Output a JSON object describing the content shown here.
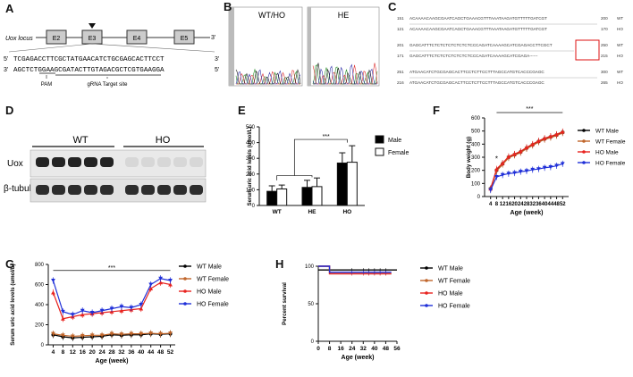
{
  "panels": {
    "A": {
      "label": "A",
      "locus_label": "Uox locus",
      "exons": [
        "E2",
        "E3",
        "E4",
        "E5"
      ],
      "prime5": "5'",
      "prime3": "3'",
      "top_seq": "TCGAGACCTTCGCTATGAACATCTGCGAGCACTTCCT",
      "bottom_seq": "AGCTCTGGAAGCGATACTTGTAGACGCTCGTGAAGGA",
      "top_left": "5'",
      "top_right": "3'",
      "bot_left": "3'",
      "bot_right": "5'",
      "pam_label": "PAM",
      "grna_label": "gRNA Target site"
    },
    "B": {
      "label": "B",
      "left_title": "WT/HO",
      "right_title": "HE"
    },
    "C": {
      "label": "C",
      "rows": [
        {
          "start": "151",
          "seq": "ACAAAACAAGCGAATCAGCTGAAACGTTTAAATAAGATGTTTTTGATCGT",
          "end": "200",
          "name": "WT"
        },
        {
          "start": "121",
          "seq": "ACAAAACAAGCGAATCAGCTGAAACGTTTAAATAAGATGTTTTTGATCGT",
          "end": "170",
          "name": "HO"
        },
        {
          "start": "201",
          "seq": "GAGCATTTCTCTCTCTCTCTCTCCCAGATCAAAAGCATCGAGACCTTCGCT",
          "end": "250",
          "name": "WT"
        },
        {
          "start": "171",
          "seq": "GAGCATTTCTCTCTCTCTCTCTCCCAGATCAAAAGCATCGAGA------",
          "end": "215",
          "name": "HO"
        },
        {
          "start": "251",
          "seq": "ATGAACATCTGCGAGCACTTCCTCTTCCTTTAGCCATGTCACCCGAGC",
          "end": "300",
          "name": "WT"
        },
        {
          "start": "216",
          "seq": "ATGAACATCTGCGAGCACTTCCTCTTCCTTTAGCCATGTCACCCGAGC",
          "end": "265",
          "name": "HO"
        }
      ]
    },
    "D": {
      "label": "D",
      "group_wt": "WT",
      "group_ho": "HO",
      "row1": "Uox",
      "row2": "β-tubulin"
    },
    "E": {
      "label": "E",
      "significance": "***"
    },
    "F": {
      "label": "F",
      "significance": "***",
      "early_sig": "*"
    },
    "G": {
      "label": "G",
      "significance": "***"
    },
    "H": {
      "label": "H"
    }
  },
  "chart_data": [
    {
      "id": "E",
      "type": "bar",
      "title": "",
      "ylabel": "Serum uric acid levels (umol/L)",
      "xlabel": "",
      "categories": [
        "WT",
        "HE",
        "HO"
      ],
      "series": [
        {
          "name": "Male",
          "color": "#000000",
          "values": [
            90,
            115,
            270
          ],
          "errors": [
            35,
            45,
            65
          ]
        },
        {
          "name": "Female",
          "color": "#ffffff",
          "values": [
            105,
            120,
            275
          ],
          "errors": [
            25,
            55,
            105
          ]
        }
      ],
      "ylim": [
        0,
        500
      ],
      "yticks": [
        0,
        100,
        200,
        300,
        400,
        500
      ]
    },
    {
      "id": "F",
      "type": "line",
      "xlabel": "Age (week)",
      "ylabel": "Body weight (g)",
      "x": [
        4,
        8,
        12,
        16,
        20,
        24,
        28,
        32,
        36,
        40,
        44,
        48,
        52
      ],
      "xlim": [
        0,
        56
      ],
      "ylim": [
        0,
        600
      ],
      "yticks": [
        0,
        100,
        200,
        300,
        400,
        500,
        600
      ],
      "series": [
        {
          "name": "WT Male",
          "color": "#000000",
          "values": [
            60,
            200,
            250,
            300,
            320,
            340,
            370,
            395,
            420,
            440,
            455,
            470,
            490
          ]
        },
        {
          "name": "WT Female",
          "color": "#c0652a",
          "values": [
            55,
            195,
            245,
            295,
            315,
            335,
            365,
            390,
            415,
            435,
            450,
            465,
            485
          ]
        },
        {
          "name": "HO Male",
          "color": "#e8231f",
          "values": [
            60,
            210,
            255,
            305,
            325,
            345,
            375,
            400,
            425,
            445,
            460,
            475,
            495
          ]
        },
        {
          "name": "HO Female",
          "color": "#1f2fd8",
          "values": [
            50,
            150,
            165,
            175,
            180,
            190,
            195,
            205,
            210,
            220,
            225,
            235,
            250
          ]
        }
      ]
    },
    {
      "id": "G",
      "type": "line",
      "xlabel": "Age (week)",
      "ylabel": "Serum uric acid levels (umol/L)",
      "x": [
        4,
        8,
        12,
        16,
        20,
        24,
        28,
        32,
        36,
        40,
        44,
        48,
        52
      ],
      "ylim": [
        0,
        800
      ],
      "yticks": [
        0,
        200,
        400,
        600,
        800
      ],
      "series": [
        {
          "name": "WT Male",
          "color": "#000000",
          "values": [
            100,
            80,
            70,
            75,
            80,
            85,
            100,
            95,
            100,
            100,
            110,
            105,
            110
          ]
        },
        {
          "name": "WT Female",
          "color": "#c0652a",
          "values": [
            110,
            95,
            85,
            90,
            95,
            95,
            110,
            105,
            110,
            110,
            115,
            110,
            115
          ]
        },
        {
          "name": "HO Male",
          "color": "#e8231f",
          "values": [
            520,
            260,
            280,
            300,
            310,
            320,
            330,
            340,
            350,
            360,
            560,
            620,
            600
          ]
        },
        {
          "name": "HO Female",
          "color": "#1f2fd8",
          "values": [
            640,
            330,
            300,
            340,
            320,
            340,
            360,
            380,
            370,
            400,
            600,
            660,
            640
          ]
        }
      ]
    },
    {
      "id": "H",
      "type": "line",
      "xlabel": "Age (week)",
      "ylabel": "Percent survival",
      "xticks": [
        0,
        8,
        16,
        24,
        32,
        40,
        48,
        56
      ],
      "ylim": [
        0,
        100
      ],
      "yticks": [
        0,
        50,
        100
      ],
      "series": [
        {
          "name": "WT Male",
          "color": "#000000",
          "x": [
            0,
            56
          ],
          "values": [
            95,
            95
          ]
        },
        {
          "name": "WT Female",
          "color": "#c0652a",
          "x": [
            0,
            8,
            52
          ],
          "values": [
            100,
            90,
            90
          ]
        },
        {
          "name": "HO Male",
          "color": "#e8231f",
          "x": [
            0,
            8,
            52
          ],
          "values": [
            100,
            90,
            90
          ]
        },
        {
          "name": "HO Female",
          "color": "#1f2fd8",
          "x": [
            0,
            8,
            52
          ],
          "values": [
            100,
            92,
            92
          ]
        }
      ]
    }
  ]
}
